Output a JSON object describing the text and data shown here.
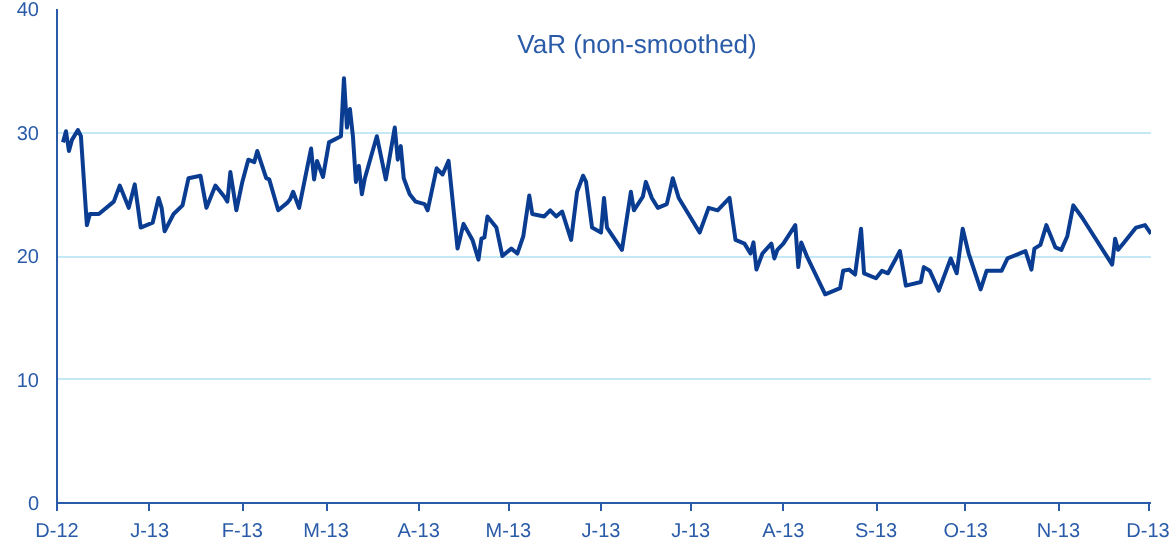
{
  "chart_data": {
    "type": "line",
    "title": "VaR (non-smoothed)",
    "x": [
      "2012-12-03",
      "2012-12-04",
      "2012-12-05",
      "2012-12-06",
      "2012-12-08",
      "2012-12-09",
      "2012-12-11",
      "2012-12-12",
      "2012-12-15",
      "2012-12-20",
      "2012-12-22",
      "2012-12-25",
      "2012-12-27",
      "2012-12-28",
      "2012-12-29",
      "2013-01-02",
      "2013-01-04",
      "2013-01-05",
      "2013-01-06",
      "2013-01-09",
      "2013-01-12",
      "2013-01-14",
      "2013-01-16",
      "2013-01-18",
      "2013-01-20",
      "2013-01-23",
      "2013-01-26",
      "2013-01-27",
      "2013-01-28",
      "2013-01-30",
      "2013-02-01",
      "2013-02-03",
      "2013-02-05",
      "2013-02-06",
      "2013-02-09",
      "2013-02-10",
      "2013-02-13",
      "2013-02-16",
      "2013-02-17",
      "2013-02-18",
      "2013-02-20",
      "2013-02-22",
      "2013-02-24",
      "2013-02-25",
      "2013-02-26",
      "2013-02-28",
      "2013-03-02",
      "2013-03-06",
      "2013-03-07",
      "2013-03-08",
      "2013-03-09",
      "2013-03-10",
      "2013-03-11",
      "2013-03-12",
      "2013-03-13",
      "2013-03-14",
      "2013-03-18",
      "2013-03-21",
      "2013-03-24",
      "2013-03-25",
      "2013-03-26",
      "2013-03-27",
      "2013-03-29",
      "2013-03-31",
      "2013-04-03",
      "2013-04-04",
      "2013-04-07",
      "2013-04-09",
      "2013-04-11",
      "2013-04-14",
      "2013-04-16",
      "2013-04-19",
      "2013-04-21",
      "2013-04-22",
      "2013-04-23",
      "2013-04-24",
      "2013-04-27",
      "2013-04-29",
      "2013-05-02",
      "2013-05-04",
      "2013-05-06",
      "2013-05-08",
      "2013-05-09",
      "2013-05-13",
      "2013-05-15",
      "2013-05-17",
      "2013-05-19",
      "2013-05-22",
      "2013-05-24",
      "2013-05-26",
      "2013-05-27",
      "2013-05-29",
      "2013-06-01",
      "2013-06-02",
      "2013-06-03",
      "2013-06-08",
      "2013-06-11",
      "2013-06-12",
      "2013-06-15",
      "2013-06-16",
      "2013-06-18",
      "2013-06-20",
      "2013-06-23",
      "2013-06-24",
      "2013-06-25",
      "2013-06-27",
      "2013-06-30",
      "2013-07-04",
      "2013-07-07",
      "2013-07-10",
      "2013-07-14",
      "2013-07-16",
      "2013-07-19",
      "2013-07-21",
      "2013-07-22",
      "2013-07-23",
      "2013-07-25",
      "2013-07-28",
      "2013-07-29",
      "2013-07-30",
      "2013-08-01",
      "2013-08-05",
      "2013-08-06",
      "2013-08-07",
      "2013-08-09",
      "2013-08-15",
      "2013-08-20",
      "2013-08-21",
      "2013-08-23",
      "2013-08-25",
      "2013-08-27",
      "2013-08-28",
      "2013-09-01",
      "2013-09-03",
      "2013-09-05",
      "2013-09-09",
      "2013-09-11",
      "2013-09-16",
      "2013-09-17",
      "2013-09-19",
      "2013-09-22",
      "2013-09-26",
      "2013-09-28",
      "2013-09-30",
      "2013-10-02",
      "2013-10-06",
      "2013-10-08",
      "2013-10-13",
      "2013-10-15",
      "2013-10-21",
      "2013-10-23",
      "2013-10-24",
      "2013-10-26",
      "2013-10-28",
      "2013-10-31",
      "2013-11-02",
      "2013-11-04",
      "2013-11-06",
      "2013-11-09",
      "2013-11-19",
      "2013-11-20",
      "2013-11-21",
      "2013-11-23",
      "2013-11-27",
      "2013-11-30",
      "2013-12-02"
    ],
    "series": [
      {
        "color": "#0a3d91",
        "values": [
          29.2,
          30.1,
          28.5,
          29.4,
          30.2,
          29.7,
          22.5,
          23.4,
          23.4,
          24.4,
          25.7,
          23.9,
          25.8,
          24.1,
          22.3,
          22.7,
          24.7,
          23.9,
          22.0,
          23.4,
          24.1,
          26.3,
          26.4,
          26.5,
          23.9,
          25.7,
          24.8,
          24.4,
          26.8,
          23.7,
          26.0,
          27.8,
          27.6,
          28.5,
          26.3,
          26.2,
          23.7,
          24.3,
          24.6,
          25.2,
          23.9,
          26.3,
          28.7,
          26.2,
          27.7,
          26.4,
          29.2,
          29.7,
          34.4,
          30.4,
          31.9,
          29.7,
          26.0,
          27.3,
          25.0,
          26.3,
          29.7,
          26.2,
          30.4,
          27.8,
          28.9,
          26.3,
          25.0,
          24.4,
          24.2,
          23.7,
          27.1,
          26.6,
          27.7,
          20.6,
          22.6,
          21.3,
          19.7,
          21.4,
          21.5,
          23.2,
          22.3,
          20.0,
          20.6,
          20.2,
          21.6,
          24.9,
          23.4,
          23.2,
          23.7,
          23.2,
          23.6,
          21.3,
          25.2,
          26.5,
          26.0,
          22.3,
          21.9,
          24.7,
          22.3,
          20.5,
          25.2,
          23.7,
          24.8,
          26.0,
          24.7,
          23.9,
          24.2,
          25.2,
          26.3,
          24.7,
          23.5,
          21.9,
          23.9,
          23.7,
          24.7,
          21.3,
          21.0,
          20.2,
          21.1,
          18.9,
          20.2,
          21.0,
          19.8,
          20.5,
          21.0,
          22.5,
          19.1,
          21.1,
          19.9,
          16.9,
          17.4,
          18.8,
          18.9,
          18.5,
          22.2,
          18.6,
          18.2,
          18.8,
          18.6,
          20.4,
          17.6,
          17.9,
          19.1,
          18.8,
          17.2,
          19.8,
          18.6,
          22.2,
          20.2,
          17.3,
          18.8,
          18.8,
          19.8,
          20.4,
          18.9,
          20.6,
          20.9,
          22.5,
          20.7,
          20.5,
          21.6,
          24.1,
          23.1,
          19.3,
          21.4,
          20.5,
          21.1,
          22.3,
          22.5,
          21.8
        ]
      }
    ],
    "xlim": [
      "2012-12-01",
      "2013-12-02"
    ],
    "xticks": [
      {
        "value": "2012-12-01",
        "label": "D-12"
      },
      {
        "value": "2013-01-01",
        "label": "J-13"
      },
      {
        "value": "2013-02-01",
        "label": "F-13"
      },
      {
        "value": "2013-03-01",
        "label": "M-13"
      },
      {
        "value": "2013-04-01",
        "label": "A-13"
      },
      {
        "value": "2013-05-01",
        "label": "M-13"
      },
      {
        "value": "2013-06-01",
        "label": "J-13"
      },
      {
        "value": "2013-07-01",
        "label": "J-13"
      },
      {
        "value": "2013-08-01",
        "label": "A-13"
      },
      {
        "value": "2013-09-01",
        "label": "S-13"
      },
      {
        "value": "2013-10-01",
        "label": "O-13"
      },
      {
        "value": "2013-11-01",
        "label": "N-13"
      },
      {
        "value": "2013-12-01",
        "label": "D-13"
      }
    ],
    "ylim": [
      0,
      40
    ],
    "yticks": [
      0,
      10,
      20,
      30,
      40
    ],
    "grid": "y",
    "marker": "none",
    "line_style": "solid"
  }
}
